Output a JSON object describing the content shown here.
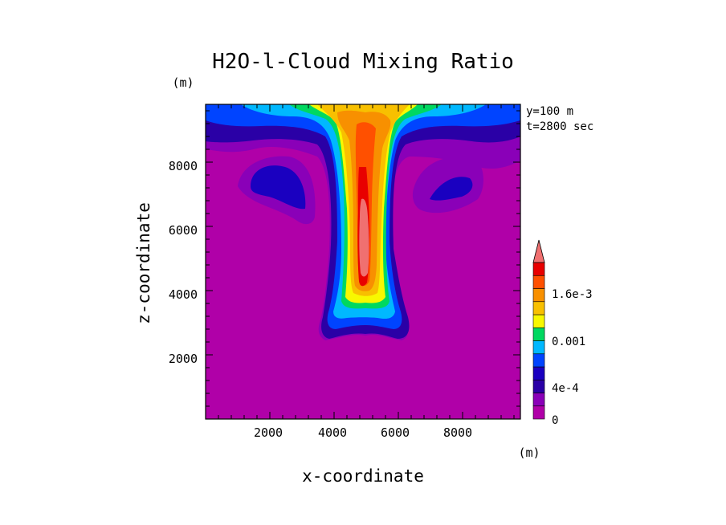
{
  "chart_data": {
    "type": "heatmap",
    "title": "H2O-l-Cloud Mixing Ratio",
    "xlabel": "x-coordinate",
    "ylabel": "z-coordinate",
    "x_unit": "(m)",
    "y_unit": "(m)",
    "annotations": [
      "y=100 m",
      "t=2800 sec"
    ],
    "xlim": [
      0,
      9800
    ],
    "ylim": [
      0,
      9800
    ],
    "x_ticks": [
      2000,
      4000,
      6000,
      8000
    ],
    "y_ticks": [
      2000,
      4000,
      6000,
      8000
    ],
    "grid": false,
    "colorbar": {
      "placement": "right",
      "levels": [
        0,
        0.0001,
        0.0002,
        0.0003,
        0.0004,
        0.0005,
        0.0006,
        0.0007,
        0.0008,
        0.0009,
        0.001,
        0.0011,
        0.0012,
        0.0013,
        0.0014,
        0.0015,
        0.0016,
        0.0017,
        0.0018,
        0.0019,
        0.002
      ],
      "tick_labels": [
        {
          "value": 0,
          "label": "0"
        },
        {
          "value": 0.0004,
          "label": "4e-4"
        },
        {
          "value": 0.001,
          "label": "0.001"
        },
        {
          "value": 0.0016,
          "label": "1.6e-3"
        }
      ],
      "colors": [
        "#b000a8",
        "#8a00b8",
        "#2a00a6",
        "#1a00c0",
        "#0044ff",
        "#00b8ff",
        "#00d860",
        "#f8f800",
        "#f8c000",
        "#f89000",
        "#ff5000",
        "#e80000"
      ],
      "extend_color": "#f07070"
    }
  }
}
